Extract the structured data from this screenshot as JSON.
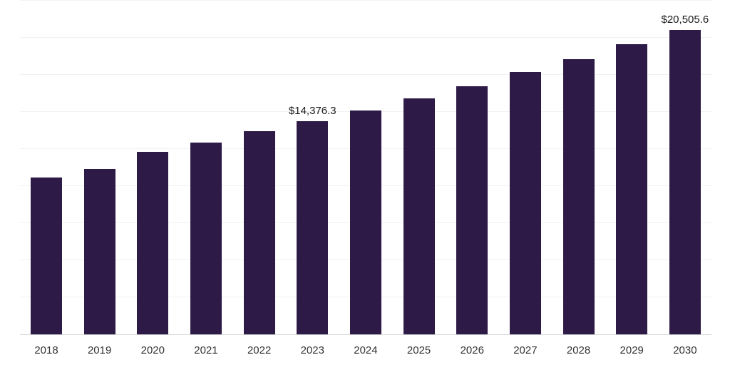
{
  "page": {
    "background": "#ffffff"
  },
  "chart_data": {
    "type": "bar",
    "title": "",
    "xlabel": "",
    "ylabel": "",
    "categories": [
      "2018",
      "2019",
      "2020",
      "2021",
      "2022",
      "2023",
      "2024",
      "2025",
      "2026",
      "2027",
      "2028",
      "2029",
      "2030"
    ],
    "values": [
      10600,
      11170,
      12300,
      12950,
      13700,
      14376.3,
      15100,
      15900,
      16720,
      17680,
      18550,
      19550,
      20505.6
    ],
    "data_labels": {
      "2023": "$14,376.3",
      "2030": "$20,505.6"
    },
    "ylim": [
      0,
      22500
    ],
    "grid": "horizontal",
    "grid_divisions": 9,
    "legend": "none",
    "colors": {
      "bar": "#2e1a47",
      "gridline": "#f2f2f2",
      "axis_line": "#d4d4d4",
      "value_label": "#1a1a1a",
      "tick_label": "#333333"
    }
  }
}
